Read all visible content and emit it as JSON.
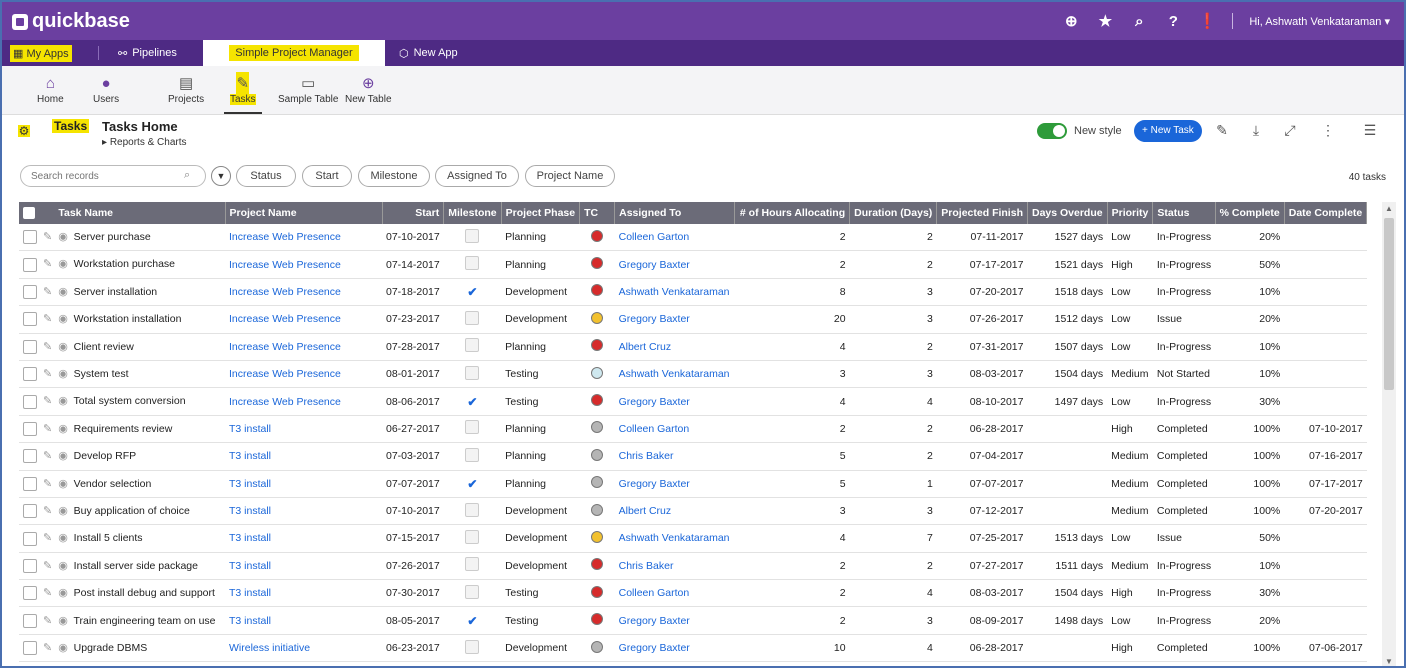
{
  "topbar": {
    "brand": "quickbase",
    "user_greeting": "Hi, Ashwath Venkataraman",
    "icons": [
      "add-icon",
      "star-icon",
      "search-icon",
      "help-icon",
      "alert-icon",
      "user-dropdown-icon"
    ]
  },
  "appbar": {
    "my_apps": "My Apps",
    "pipelines": "Pipelines",
    "current_app": "Simple Project Manager",
    "new_app": "New App"
  },
  "nav": {
    "items": [
      {
        "label": "Home",
        "icon": "home-icon"
      },
      {
        "label": "Users",
        "icon": "users-icon"
      },
      {
        "label": "Projects",
        "icon": "projects-icon"
      },
      {
        "label": "Tasks",
        "icon": "tasks-icon"
      },
      {
        "label": "Sample Table",
        "icon": "folder-icon"
      },
      {
        "label": "New Table",
        "icon": "plus-icon"
      }
    ]
  },
  "page": {
    "tag": "Tasks",
    "title": "Tasks Home",
    "reports_link": "Reports & Charts",
    "new_style": "New style",
    "new_task": "+ New Task",
    "task_count": "40 tasks"
  },
  "filters": {
    "search_placeholder": "Search records",
    "chips": [
      "Status",
      "Start",
      "Milestone",
      "Assigned To",
      "Project Name"
    ]
  },
  "colors": {
    "purple": "#6b3fa0",
    "deep_purple": "#4e2a84",
    "highlight": "#f5e400",
    "link": "#1a66d9",
    "red": "#d62b2b",
    "yellow": "#f2c12e",
    "grey": "#b5b5b5",
    "teal": "#cfe8ef"
  },
  "table": {
    "headers": [
      "Task Name",
      "Project Name",
      "Start",
      "Milestone",
      "Project Phase",
      "TC",
      "Assigned To",
      "# of Hours Allocating",
      "Duration (Days)",
      "Projected Finish",
      "Days Overdue",
      "Priority",
      "Status",
      "% Complete",
      "Date Complete"
    ],
    "rows": [
      {
        "task": "Server purchase",
        "project": "Increase Web Presence",
        "start": "07-10-2017",
        "milestone": false,
        "phase": "Planning",
        "tc": "red",
        "assigned": "Colleen Garton",
        "hours": "2",
        "duration": "2",
        "finish": "07-11-2017",
        "overdue": "1527 days",
        "priority": "Low",
        "status": "In-Progress",
        "pct": "20%",
        "done": ""
      },
      {
        "task": "Workstation purchase",
        "project": "Increase Web Presence",
        "start": "07-14-2017",
        "milestone": false,
        "phase": "Planning",
        "tc": "red",
        "assigned": "Gregory Baxter",
        "hours": "2",
        "duration": "2",
        "finish": "07-17-2017",
        "overdue": "1521 days",
        "priority": "High",
        "status": "In-Progress",
        "pct": "50%",
        "done": ""
      },
      {
        "task": "Server installation",
        "project": "Increase Web Presence",
        "start": "07-18-2017",
        "milestone": true,
        "phase": "Development",
        "tc": "red",
        "assigned": "Ashwath Venkataraman",
        "hours": "8",
        "duration": "3",
        "finish": "07-20-2017",
        "overdue": "1518 days",
        "priority": "Low",
        "status": "In-Progress",
        "pct": "10%",
        "done": ""
      },
      {
        "task": "Workstation installation",
        "project": "Increase Web Presence",
        "start": "07-23-2017",
        "milestone": false,
        "phase": "Development",
        "tc": "yellow",
        "assigned": "Gregory Baxter",
        "hours": "20",
        "duration": "3",
        "finish": "07-26-2017",
        "overdue": "1512 days",
        "priority": "Low",
        "status": "Issue",
        "pct": "20%",
        "done": ""
      },
      {
        "task": "Client review",
        "project": "Increase Web Presence",
        "start": "07-28-2017",
        "milestone": false,
        "phase": "Planning",
        "tc": "red",
        "assigned": "Albert Cruz",
        "hours": "4",
        "duration": "2",
        "finish": "07-31-2017",
        "overdue": "1507 days",
        "priority": "Low",
        "status": "In-Progress",
        "pct": "10%",
        "done": ""
      },
      {
        "task": "System test",
        "project": "Increase Web Presence",
        "start": "08-01-2017",
        "milestone": false,
        "phase": "Testing",
        "tc": "teal",
        "assigned": "Ashwath Venkataraman",
        "hours": "3",
        "duration": "3",
        "finish": "08-03-2017",
        "overdue": "1504 days",
        "priority": "Medium",
        "status": "Not Started",
        "pct": "10%",
        "done": ""
      },
      {
        "task": "Total system conversion",
        "project": "Increase Web Presence",
        "start": "08-06-2017",
        "milestone": true,
        "phase": "Testing",
        "tc": "red",
        "assigned": "Gregory Baxter",
        "hours": "4",
        "duration": "4",
        "finish": "08-10-2017",
        "overdue": "1497 days",
        "priority": "Low",
        "status": "In-Progress",
        "pct": "30%",
        "done": ""
      },
      {
        "task": "Requirements review",
        "project": "T3 install",
        "start": "06-27-2017",
        "milestone": false,
        "phase": "Planning",
        "tc": "grey",
        "assigned": "Colleen Garton",
        "hours": "2",
        "duration": "2",
        "finish": "06-28-2017",
        "overdue": "",
        "priority": "High",
        "status": "Completed",
        "pct": "100%",
        "done": "07-10-2017"
      },
      {
        "task": "Develop RFP",
        "project": "T3 install",
        "start": "07-03-2017",
        "milestone": false,
        "phase": "Planning",
        "tc": "grey",
        "assigned": "Chris Baker",
        "hours": "5",
        "duration": "2",
        "finish": "07-04-2017",
        "overdue": "",
        "priority": "Medium",
        "status": "Completed",
        "pct": "100%",
        "done": "07-16-2017"
      },
      {
        "task": "Vendor selection",
        "project": "T3 install",
        "start": "07-07-2017",
        "milestone": true,
        "phase": "Planning",
        "tc": "grey",
        "assigned": "Gregory Baxter",
        "hours": "5",
        "duration": "1",
        "finish": "07-07-2017",
        "overdue": "",
        "priority": "Medium",
        "status": "Completed",
        "pct": "100%",
        "done": "07-17-2017"
      },
      {
        "task": "Buy application of choice",
        "project": "T3 install",
        "start": "07-10-2017",
        "milestone": false,
        "phase": "Development",
        "tc": "grey",
        "assigned": "Albert Cruz",
        "hours": "3",
        "duration": "3",
        "finish": "07-12-2017",
        "overdue": "",
        "priority": "Medium",
        "status": "Completed",
        "pct": "100%",
        "done": "07-20-2017"
      },
      {
        "task": "Install 5 clients",
        "project": "T3 install",
        "start": "07-15-2017",
        "milestone": false,
        "phase": "Development",
        "tc": "yellow",
        "assigned": "Ashwath Venkataraman",
        "hours": "4",
        "duration": "7",
        "finish": "07-25-2017",
        "overdue": "1513 days",
        "priority": "Low",
        "status": "Issue",
        "pct": "50%",
        "done": ""
      },
      {
        "task": "Install server side package",
        "project": "T3 install",
        "start": "07-26-2017",
        "milestone": false,
        "phase": "Development",
        "tc": "red",
        "assigned": "Chris Baker",
        "hours": "2",
        "duration": "2",
        "finish": "07-27-2017",
        "overdue": "1511 days",
        "priority": "Medium",
        "status": "In-Progress",
        "pct": "10%",
        "done": ""
      },
      {
        "task": "Post install debug and support",
        "project": "T3 install",
        "start": "07-30-2017",
        "milestone": false,
        "phase": "Testing",
        "tc": "red",
        "assigned": "Colleen Garton",
        "hours": "2",
        "duration": "4",
        "finish": "08-03-2017",
        "overdue": "1504 days",
        "priority": "High",
        "status": "In-Progress",
        "pct": "30%",
        "done": ""
      },
      {
        "task": "Train engineering team on use",
        "project": "T3 install",
        "start": "08-05-2017",
        "milestone": true,
        "phase": "Testing",
        "tc": "red",
        "assigned": "Gregory Baxter",
        "hours": "2",
        "duration": "3",
        "finish": "08-09-2017",
        "overdue": "1498 days",
        "priority": "Low",
        "status": "In-Progress",
        "pct": "20%",
        "done": ""
      },
      {
        "task": "Upgrade DBMS",
        "project": "Wireless initiative",
        "start": "06-23-2017",
        "milestone": false,
        "phase": "Development",
        "tc": "grey",
        "assigned": "Gregory Baxter",
        "hours": "10",
        "duration": "4",
        "finish": "06-28-2017",
        "overdue": "",
        "priority": "High",
        "status": "Completed",
        "pct": "100%",
        "done": "07-06-2017"
      }
    ]
  }
}
